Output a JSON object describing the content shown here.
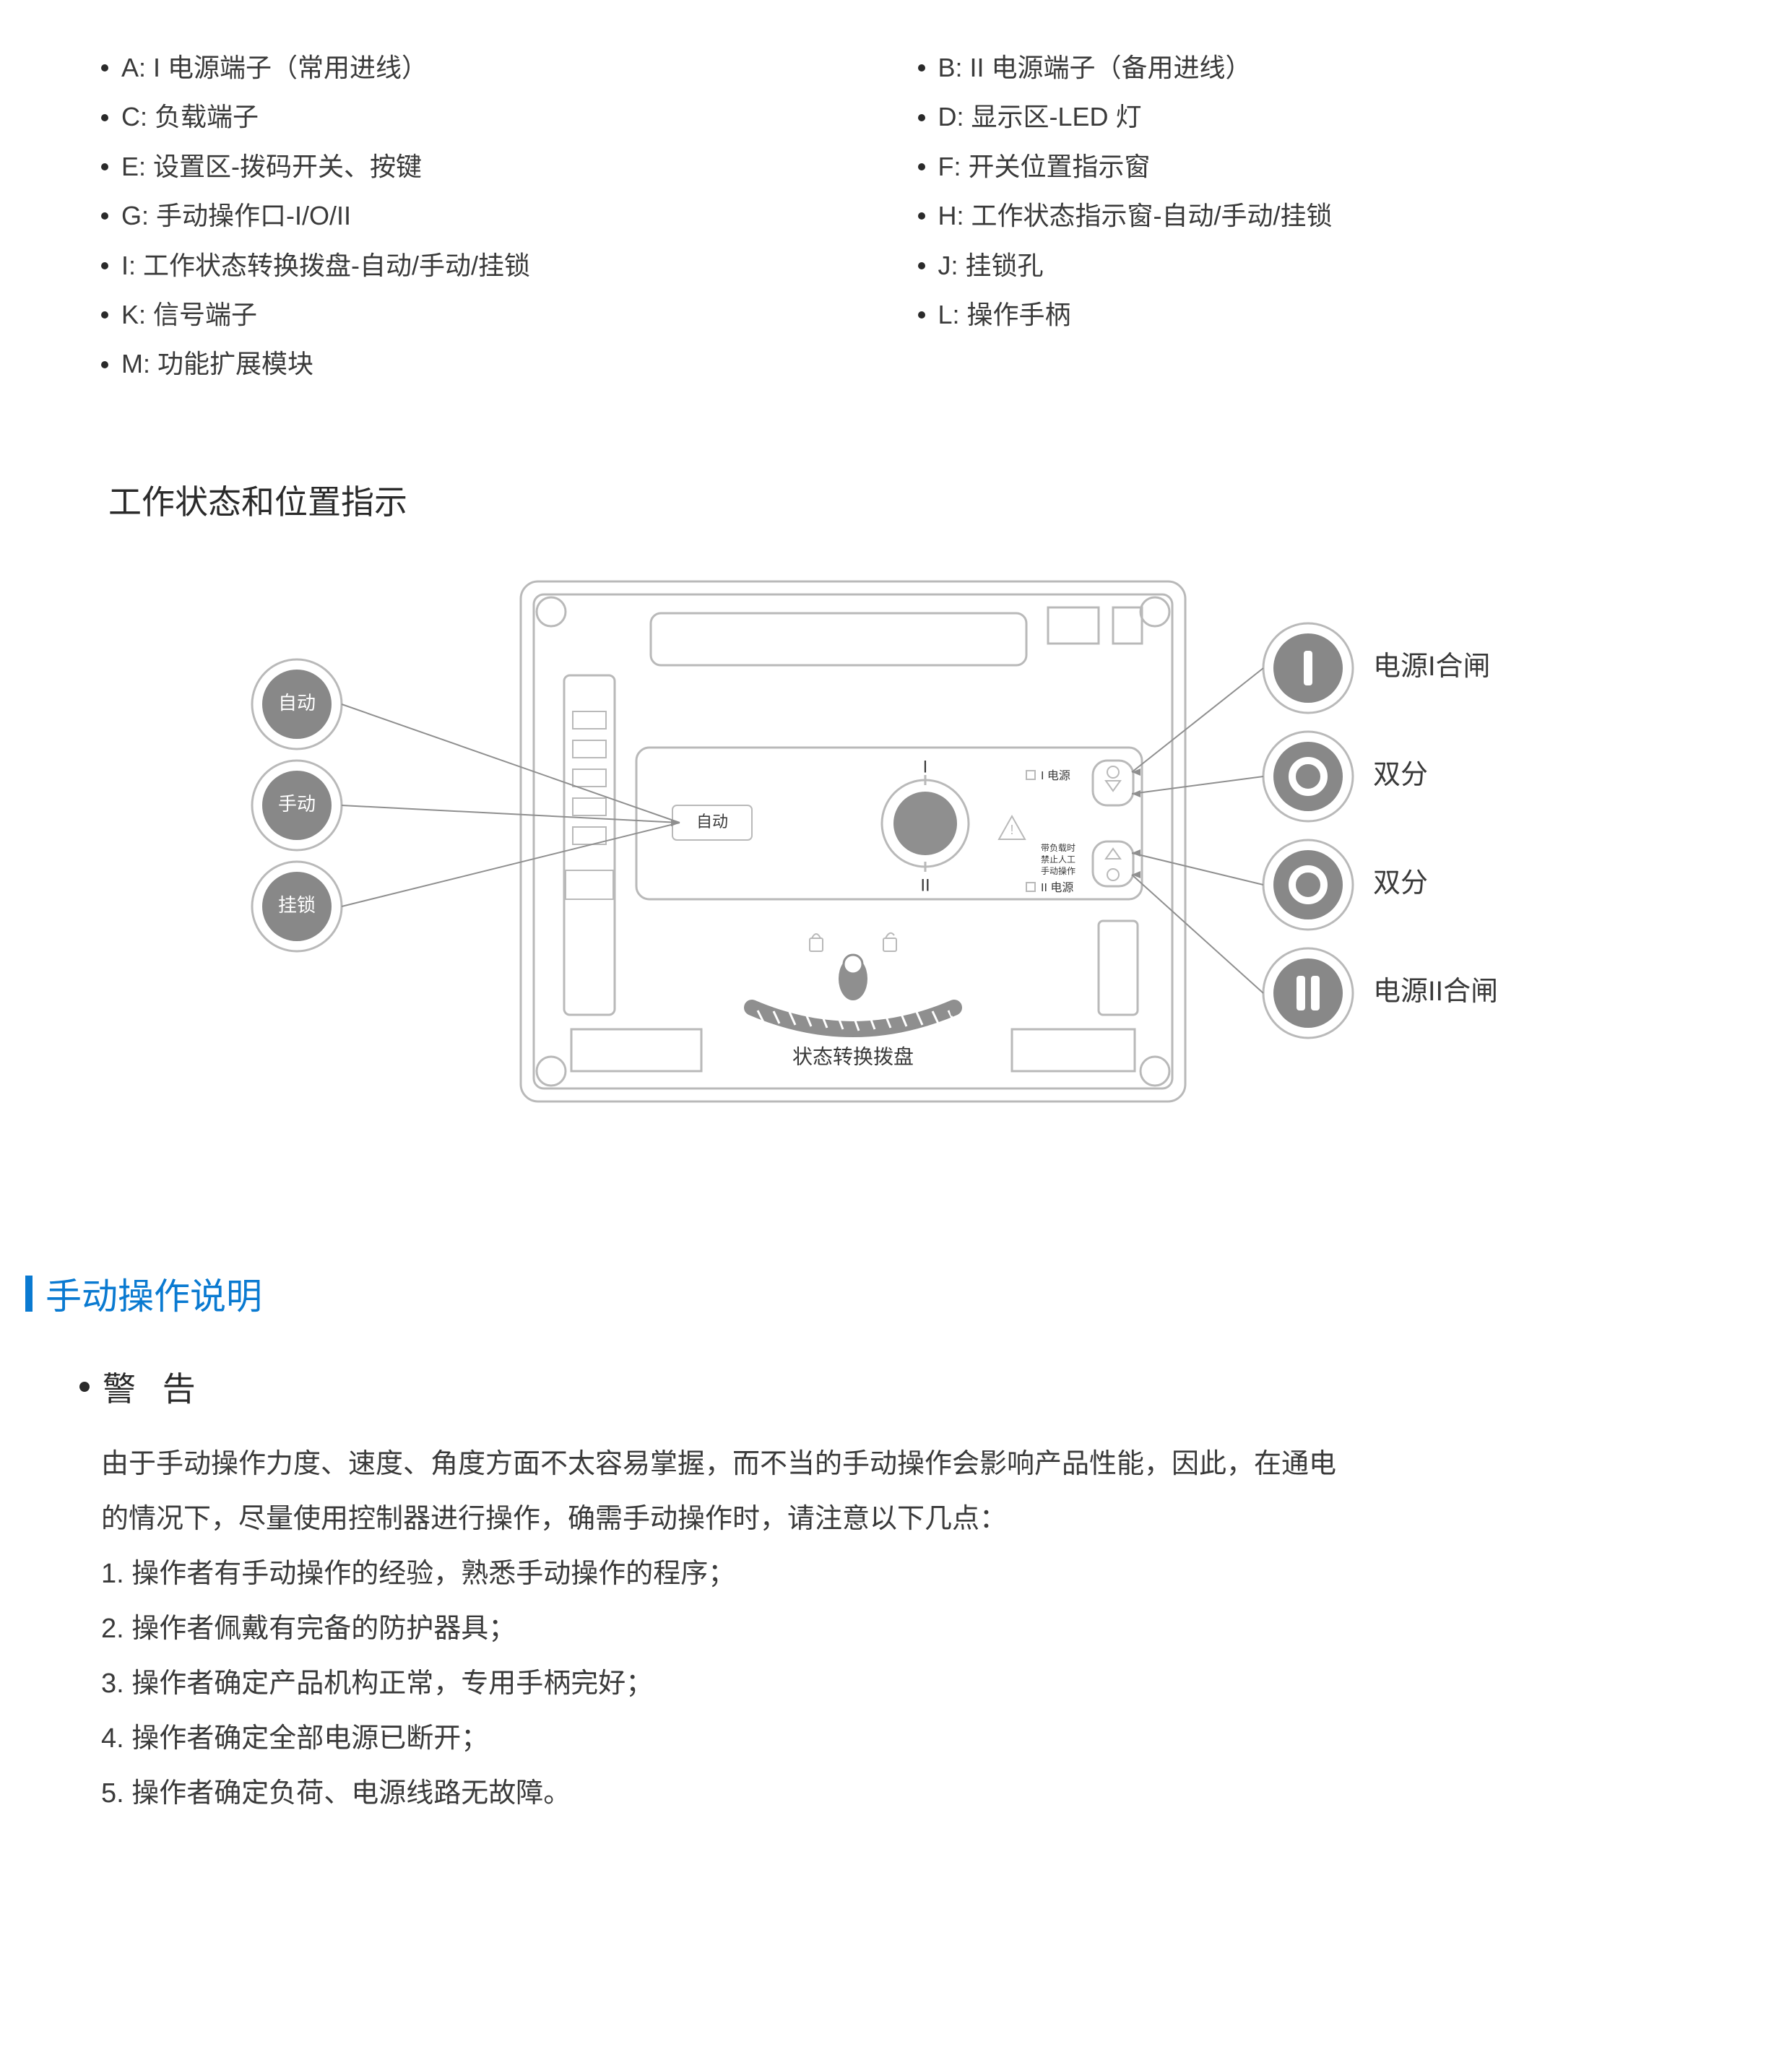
{
  "legend": {
    "left": [
      "A: I 电源端子（常用进线）",
      "C: 负载端子",
      "E: 设置区-拨码开关、按键",
      "G: 手动操作口-I/O/II",
      "I: 工作状态转换拨盘-自动/手动/挂锁",
      "K: 信号端子",
      "M: 功能扩展模块"
    ],
    "right": [
      "B: II 电源端子（备用进线）",
      "D: 显示区-LED 灯",
      "F: 开关位置指示窗",
      "H: 工作状态指示窗-自动/手动/挂锁",
      "J: 挂锁孔",
      "L: 操作手柄"
    ]
  },
  "status_heading": "工作状态和位置指示",
  "diagram": {
    "stroke": "#b9b9b9",
    "stroke_dark": "#8f8f8f",
    "badge_bg": "#888888",
    "badge_text": "#ffffff",
    "label_color": "#3a3a3a",
    "left_badges": [
      "自动",
      "手动",
      "挂锁"
    ],
    "right_badges": [
      {
        "glyph": "I",
        "label": "电源I合闸"
      },
      {
        "glyph": "O",
        "label": "双分"
      },
      {
        "glyph": "O",
        "label": "双分"
      },
      {
        "glyph": "II",
        "label": "电源II合闸"
      }
    ],
    "center_label": "自动",
    "dial_label": "状态转换拨盘",
    "tiny_labels": {
      "I": "I 电源",
      "II": "II 电源",
      "warn": "带负载时\n禁止人工\n手动操作"
    },
    "marks": {
      "I": "I",
      "II": "II"
    }
  },
  "manual_section_title": "手动操作说明",
  "warning_title": "警 告",
  "warning_body": {
    "intro1": "由于手动操作力度、速度、角度方面不太容易掌握，而不当的手动操作会影响产品性能，因此，在通电",
    "intro2": "的情况下，尽量使用控制器进行操作，确需手动操作时，请注意以下几点：",
    "items": [
      "1. 操作者有手动操作的经验，熟悉手动操作的程序；",
      "2. 操作者佩戴有完备的防护器具；",
      "3. 操作者确定产品机构正常，专用手柄完好；",
      "4. 操作者确定全部电源已断开；",
      "5. 操作者确定负荷、电源线路无故障。"
    ]
  }
}
